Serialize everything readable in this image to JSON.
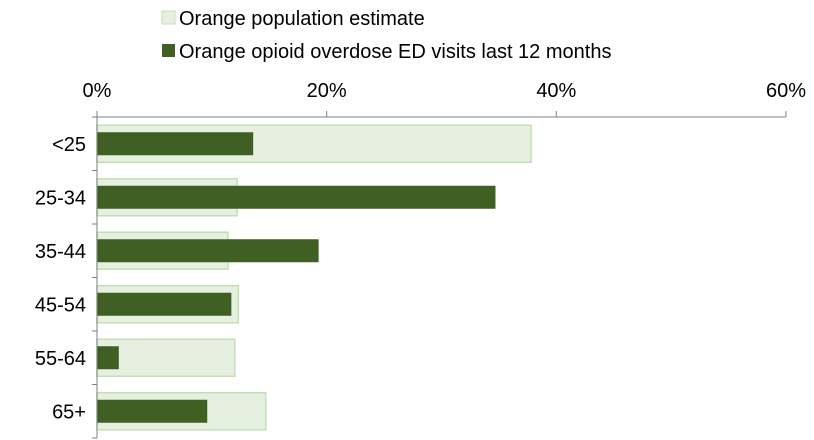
{
  "chart_data": {
    "type": "bar",
    "orientation": "horizontal",
    "categories": [
      "<25",
      "25-34",
      "35-44",
      "45-54",
      "55-64",
      "65+"
    ],
    "series": [
      {
        "name": "Orange population estimate",
        "values": [
          37.8,
          12.2,
          11.4,
          12.3,
          12.0,
          14.7
        ],
        "color": "#e6f0e0",
        "border": "#c5deb5"
      },
      {
        "name": "Orange opioid overdose ED visits last 12 months",
        "values": [
          13.6,
          34.7,
          19.3,
          11.7,
          1.9,
          9.6
        ],
        "color": "#3f5f23"
      }
    ],
    "xlim": [
      0,
      60
    ],
    "xticks": [
      0,
      20,
      40,
      60
    ],
    "xtick_labels": [
      "0%",
      "20%",
      "40%",
      "60%"
    ],
    "x_axis_position": "top",
    "legend_position": "top",
    "grid": false,
    "title": "",
    "xlabel": "",
    "ylabel": ""
  }
}
